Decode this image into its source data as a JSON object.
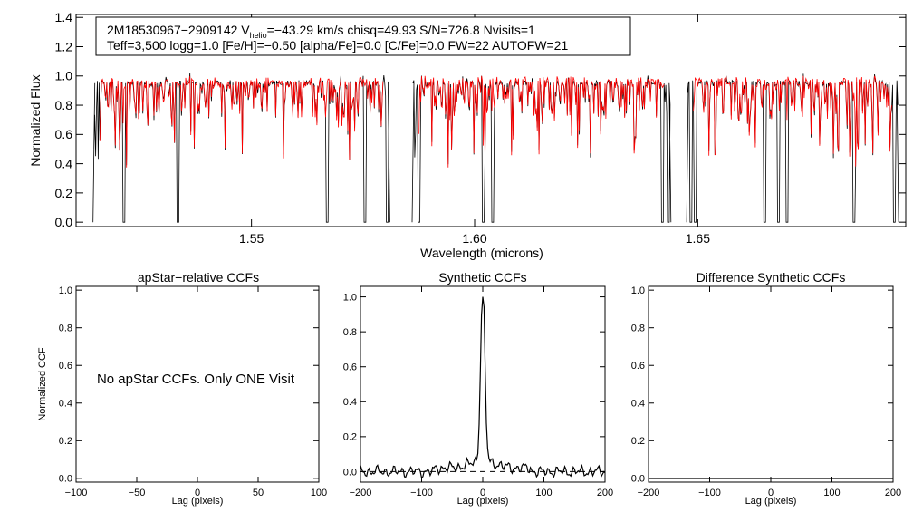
{
  "colors": {
    "observed": "#000000",
    "model": "#ff0000",
    "axis": "#000000",
    "background": "#ffffff"
  },
  "chart_data": [
    {
      "id": "spectrum",
      "type": "line",
      "title": "",
      "info_line1": "2M18530967−2909142  V",
      "info_sub": "helio",
      "info_line1_rest": "=−43.29 km/s  chisq=49.93  S/N=726.8  Nvisits=1",
      "info_line2": "Teff=3,500 logg=1.0 [Fe/H]=−0.50 [alpha/Fe]=0.0 [C/Fe]=0.0 FW=22 AUTOFW=21",
      "xlabel": "Wavelength (microns)",
      "ylabel": "Normalized Flux",
      "xlim": [
        1.5107,
        1.6966
      ],
      "ylim": [
        -0.03,
        1.42
      ],
      "xticks": [
        1.55,
        1.6,
        1.65
      ],
      "xtick_labels": [
        "1.55",
        "1.60",
        "1.65"
      ],
      "yticks": [
        0.0,
        0.2,
        0.4,
        0.6,
        0.8,
        1.0,
        1.2,
        1.4
      ],
      "ytick_labels": [
        "0.0",
        "0.2",
        "0.4",
        "0.6",
        "0.8",
        "1.0",
        "1.2",
        "1.4"
      ],
      "chips": [
        [
          1.5145,
          1.581
        ],
        [
          1.586,
          1.644
        ],
        [
          1.6475,
          1.695
        ]
      ],
      "deep_lines": [
        1.5215,
        1.5335,
        1.567,
        1.5755,
        1.5805,
        1.5875,
        1.602,
        1.604,
        1.642,
        1.6435,
        1.6485,
        1.6495,
        1.665,
        1.668,
        1.67,
        1.685,
        1.694
      ],
      "series": [
        {
          "name": "Observed spectrum",
          "color": "#000000"
        },
        {
          "name": "Best-fit model",
          "color": "#ff0000"
        }
      ]
    },
    {
      "id": "apstar_ccf",
      "type": "line",
      "title": "apStar−relative CCFs",
      "xlabel": "Lag (pixels)",
      "ylabel": "Normalized CCF",
      "xlim": [
        -100,
        100
      ],
      "ylim": [
        -0.02,
        1.02
      ],
      "xticks": [
        -100,
        -50,
        0,
        50,
        100
      ],
      "xtick_labels": [
        "−100",
        "−50",
        "0",
        "50",
        "100"
      ],
      "yticks": [
        0.0,
        0.2,
        0.4,
        0.6,
        0.8,
        1.0
      ],
      "ytick_labels": [
        "0.0",
        "0.2",
        "0.4",
        "0.6",
        "0.8",
        "1.0"
      ],
      "annotation": "No apStar CCFs.  Only ONE Visit",
      "series": []
    },
    {
      "id": "synthetic_ccf",
      "type": "line",
      "title": "Synthetic CCFs",
      "xlabel": "Lag (pixels)",
      "ylabel": "",
      "xlim": [
        -200,
        200
      ],
      "ylim": [
        -0.06,
        1.06
      ],
      "xticks": [
        -200,
        -100,
        0,
        100,
        200
      ],
      "xtick_labels": [
        "−200",
        "−100",
        "0",
        "100",
        "200"
      ],
      "yticks": [
        0.0,
        0.2,
        0.4,
        0.6,
        0.8,
        1.0
      ],
      "ytick_labels": [
        "0.0",
        "0.2",
        "0.4",
        "0.6",
        "0.8",
        "1.0"
      ],
      "peak_lag": 0,
      "peak_value": 1.0,
      "baseline": 0.0,
      "series": [
        {
          "name": "Synthetic CCF",
          "style": "solid",
          "color": "#000000"
        },
        {
          "name": "Zero level",
          "style": "dashed",
          "color": "#000000",
          "value": 0.0
        }
      ]
    },
    {
      "id": "difference_ccf",
      "type": "line",
      "title": "Difference Synthetic CCFs",
      "xlabel": "Lag (pixels)",
      "ylabel": "",
      "xlim": [
        -200,
        200
      ],
      "ylim": [
        -0.02,
        1.02
      ],
      "xticks": [
        -200,
        -100,
        0,
        100,
        200
      ],
      "xtick_labels": [
        "−200",
        "−100",
        "0",
        "100",
        "200"
      ],
      "yticks": [
        0.0,
        0.2,
        0.4,
        0.6,
        0.8,
        1.0
      ],
      "ytick_labels": [
        "0.0",
        "0.2",
        "0.4",
        "0.6",
        "0.8",
        "1.0"
      ],
      "series": [
        {
          "name": "Difference CCF",
          "style": "solid",
          "color": "#000000",
          "value": 0.0
        }
      ]
    }
  ]
}
